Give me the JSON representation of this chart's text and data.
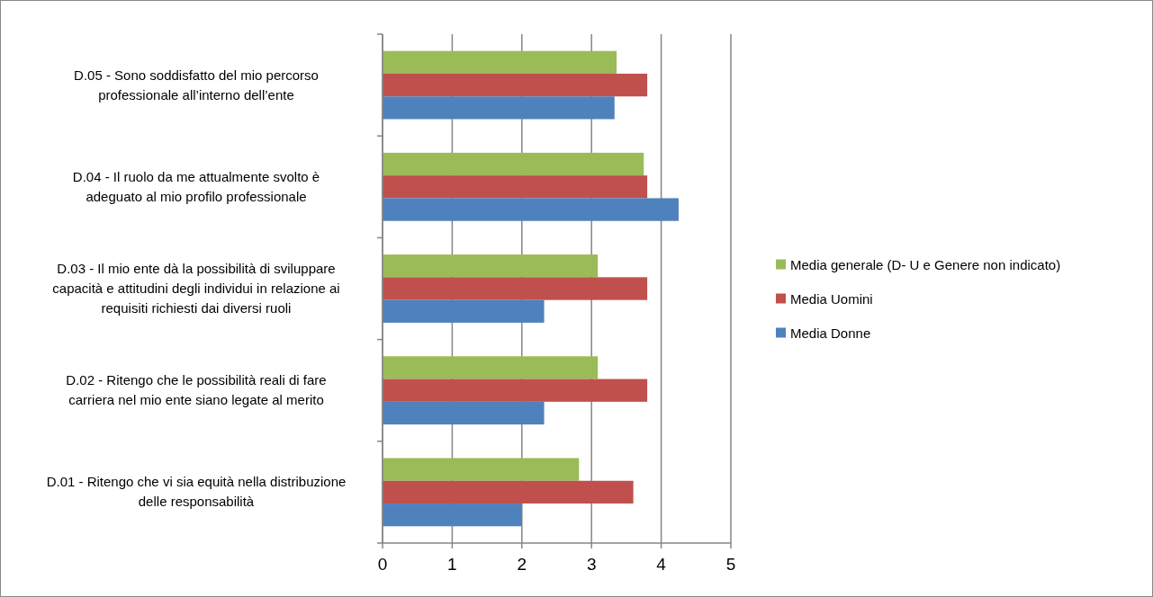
{
  "chart_data": {
    "type": "bar",
    "orientation": "horizontal",
    "categories": [
      "D.05 - Sono soddisfatto del mio percorso professionale all’interno dell’ente",
      "D.04 - Il ruolo da me attualmente svolto è adeguato al mio profilo professionale",
      "D.03 - Il mio ente dà la possibilità di sviluppare capacità e attitudini degli individui in relazione ai requisiti richiesti dai diversi ruoli",
      "D.02 - Ritengo che le possibilità reali di fare carriera nel mio ente siano legate al merito",
      "D.01 - Ritengo che vi sia equità nella distribuzione delle responsabilità"
    ],
    "series": [
      {
        "name": "Media generale (D- U e Genere non indicato)",
        "color": "#9bbb59",
        "values": [
          3.36,
          3.75,
          3.09,
          3.09,
          2.82
        ]
      },
      {
        "name": "Media Uomini",
        "color": "#c0504d",
        "values": [
          3.8,
          3.8,
          3.8,
          3.8,
          3.6
        ]
      },
      {
        "name": "Media Donne",
        "color": "#4f81bd",
        "values": [
          3.33,
          4.25,
          2.32,
          2.32,
          2.0
        ]
      }
    ],
    "xlim": [
      0,
      5
    ],
    "xticks": [
      0,
      1,
      2,
      3,
      4,
      5
    ],
    "grid": "x",
    "legend": "right"
  }
}
